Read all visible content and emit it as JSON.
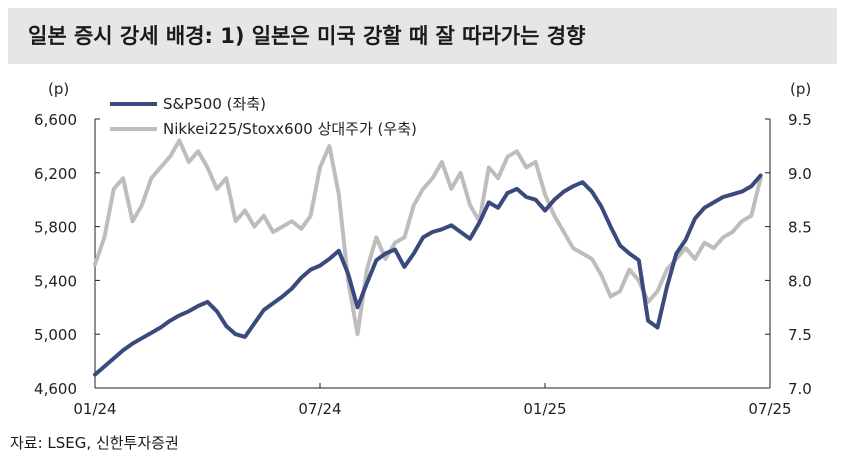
{
  "title": "일본 증시 강세 배경: 1) 일본은 미국 강할 때 잘 따라가는 경향",
  "source": "자료: LSEG, 신한투자증권",
  "chart_data": {
    "type": "line",
    "title": "일본 증시 강세 배경: 1) 일본은 미국 강할 때 잘 따라가는 경향",
    "x_unit": "month index from 2024-01 (0 = 01/24, 18 = 07/25)",
    "x_range": [
      0,
      18
    ],
    "x_ticks": [
      {
        "x": 0,
        "label": "01/24"
      },
      {
        "x": 6,
        "label": "07/24"
      },
      {
        "x": 12,
        "label": "01/25"
      },
      {
        "x": 18,
        "label": "07/25"
      }
    ],
    "left_axis": {
      "unit": "(p)",
      "range": [
        4600,
        6600
      ],
      "ticks": [
        "4,600",
        "5,000",
        "5,400",
        "5,800",
        "6,200",
        "6,600"
      ],
      "tick_values": [
        4600,
        5000,
        5400,
        5800,
        6200,
        6600
      ]
    },
    "right_axis": {
      "unit": "(p)",
      "range": [
        7.0,
        9.5
      ],
      "ticks": [
        "7.0",
        "7.5",
        "8.0",
        "8.5",
        "9.0",
        "9.5"
      ],
      "tick_values": [
        7.0,
        7.5,
        8.0,
        8.5,
        9.0,
        9.5
      ]
    },
    "legend_position": "top-left",
    "grid": false,
    "series": [
      {
        "name": "S&P500 (좌축)",
        "axis": "left",
        "color": "#3a4a7c",
        "points": [
          [
            0.0,
            4700
          ],
          [
            0.25,
            4760
          ],
          [
            0.5,
            4820
          ],
          [
            0.75,
            4880
          ],
          [
            1.0,
            4930
          ],
          [
            1.25,
            4970
          ],
          [
            1.5,
            5010
          ],
          [
            1.75,
            5050
          ],
          [
            2.0,
            5100
          ],
          [
            2.25,
            5140
          ],
          [
            2.5,
            5170
          ],
          [
            2.75,
            5210
          ],
          [
            3.0,
            5240
          ],
          [
            3.25,
            5170
          ],
          [
            3.5,
            5060
          ],
          [
            3.75,
            5000
          ],
          [
            4.0,
            4980
          ],
          [
            4.25,
            5080
          ],
          [
            4.5,
            5180
          ],
          [
            4.75,
            5230
          ],
          [
            5.0,
            5280
          ],
          [
            5.25,
            5340
          ],
          [
            5.5,
            5420
          ],
          [
            5.75,
            5480
          ],
          [
            6.0,
            5510
          ],
          [
            6.25,
            5560
          ],
          [
            6.5,
            5620
          ],
          [
            6.75,
            5450
          ],
          [
            7.0,
            5200
          ],
          [
            7.25,
            5380
          ],
          [
            7.5,
            5550
          ],
          [
            7.75,
            5600
          ],
          [
            8.0,
            5630
          ],
          [
            8.25,
            5500
          ],
          [
            8.5,
            5600
          ],
          [
            8.75,
            5720
          ],
          [
            9.0,
            5760
          ],
          [
            9.25,
            5780
          ],
          [
            9.5,
            5810
          ],
          [
            9.75,
            5760
          ],
          [
            10.0,
            5710
          ],
          [
            10.25,
            5830
          ],
          [
            10.5,
            5980
          ],
          [
            10.75,
            5940
          ],
          [
            11.0,
            6050
          ],
          [
            11.25,
            6080
          ],
          [
            11.5,
            6020
          ],
          [
            11.75,
            6000
          ],
          [
            12.0,
            5920
          ],
          [
            12.25,
            6000
          ],
          [
            12.5,
            6060
          ],
          [
            12.75,
            6100
          ],
          [
            13.0,
            6130
          ],
          [
            13.25,
            6060
          ],
          [
            13.5,
            5950
          ],
          [
            13.75,
            5800
          ],
          [
            14.0,
            5660
          ],
          [
            14.25,
            5600
          ],
          [
            14.5,
            5550
          ],
          [
            14.75,
            5100
          ],
          [
            15.0,
            5050
          ],
          [
            15.25,
            5350
          ],
          [
            15.5,
            5600
          ],
          [
            15.75,
            5700
          ],
          [
            16.0,
            5860
          ],
          [
            16.25,
            5940
          ],
          [
            16.5,
            5980
          ],
          [
            16.75,
            6020
          ],
          [
            17.0,
            6040
          ],
          [
            17.25,
            6060
          ],
          [
            17.5,
            6100
          ],
          [
            17.75,
            6180
          ]
        ]
      },
      {
        "name": "Nikkei225/Stoxx600 상대주가 (우축)",
        "axis": "right",
        "color": "#bdbdbd",
        "points": [
          [
            0.0,
            8.15
          ],
          [
            0.25,
            8.4
          ],
          [
            0.5,
            8.85
          ],
          [
            0.75,
            8.95
          ],
          [
            1.0,
            8.55
          ],
          [
            1.25,
            8.7
          ],
          [
            1.5,
            8.95
          ],
          [
            1.75,
            9.05
          ],
          [
            2.0,
            9.15
          ],
          [
            2.25,
            9.3
          ],
          [
            2.5,
            9.1
          ],
          [
            2.75,
            9.2
          ],
          [
            3.0,
            9.05
          ],
          [
            3.25,
            8.85
          ],
          [
            3.5,
            8.95
          ],
          [
            3.75,
            8.55
          ],
          [
            4.0,
            8.65
          ],
          [
            4.25,
            8.5
          ],
          [
            4.5,
            8.6
          ],
          [
            4.75,
            8.45
          ],
          [
            5.0,
            8.5
          ],
          [
            5.25,
            8.55
          ],
          [
            5.5,
            8.48
          ],
          [
            5.75,
            8.6
          ],
          [
            6.0,
            9.05
          ],
          [
            6.25,
            9.25
          ],
          [
            6.5,
            8.8
          ],
          [
            6.75,
            8.0
          ],
          [
            7.0,
            7.5
          ],
          [
            7.25,
            8.1
          ],
          [
            7.5,
            8.4
          ],
          [
            7.75,
            8.2
          ],
          [
            8.0,
            8.35
          ],
          [
            8.25,
            8.4
          ],
          [
            8.5,
            8.7
          ],
          [
            8.75,
            8.85
          ],
          [
            9.0,
            8.95
          ],
          [
            9.25,
            9.1
          ],
          [
            9.5,
            8.85
          ],
          [
            9.75,
            9.0
          ],
          [
            10.0,
            8.7
          ],
          [
            10.25,
            8.55
          ],
          [
            10.5,
            9.05
          ],
          [
            10.75,
            8.95
          ],
          [
            11.0,
            9.15
          ],
          [
            11.25,
            9.2
          ],
          [
            11.5,
            9.05
          ],
          [
            11.75,
            9.1
          ],
          [
            12.0,
            8.8
          ],
          [
            12.25,
            8.6
          ],
          [
            12.5,
            8.45
          ],
          [
            12.75,
            8.3
          ],
          [
            13.0,
            8.25
          ],
          [
            13.25,
            8.2
          ],
          [
            13.5,
            8.05
          ],
          [
            13.75,
            7.85
          ],
          [
            14.0,
            7.9
          ],
          [
            14.25,
            8.1
          ],
          [
            14.5,
            8.0
          ],
          [
            14.75,
            7.8
          ],
          [
            15.0,
            7.9
          ],
          [
            15.25,
            8.1
          ],
          [
            15.5,
            8.2
          ],
          [
            15.75,
            8.3
          ],
          [
            16.0,
            8.2
          ],
          [
            16.25,
            8.35
          ],
          [
            16.5,
            8.3
          ],
          [
            16.75,
            8.4
          ],
          [
            17.0,
            8.45
          ],
          [
            17.25,
            8.55
          ],
          [
            17.5,
            8.6
          ],
          [
            17.75,
            8.95
          ]
        ]
      }
    ]
  }
}
